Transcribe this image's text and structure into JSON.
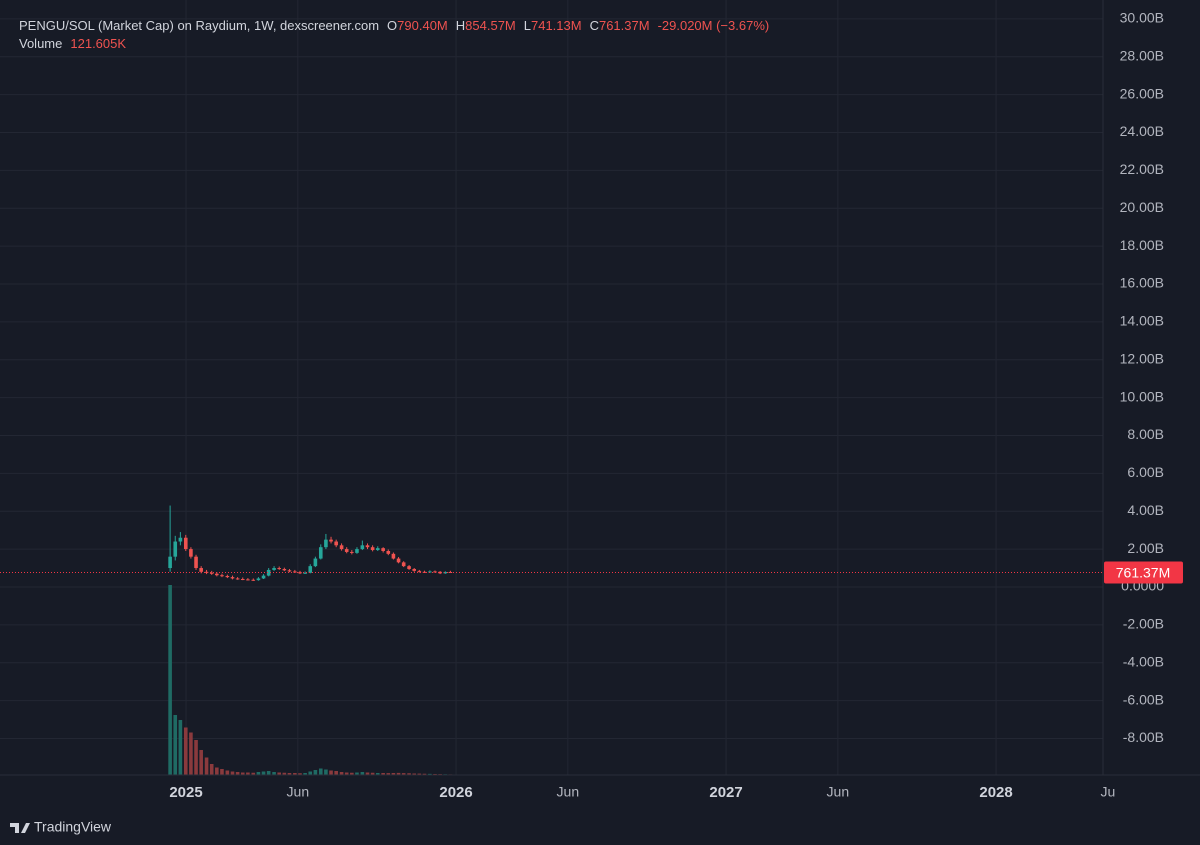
{
  "chart_data": {
    "type": "candlestick",
    "title": "PENGU/SOL (Market Cap) on Raydium, 1W, dexscreener.com",
    "ohlc_legend": [
      {
        "key": "O",
        "value": "790.40M"
      },
      {
        "key": "H",
        "value": "854.57M"
      },
      {
        "key": "L",
        "value": "741.13M"
      },
      {
        "key": "C",
        "value": "761.37M"
      }
    ],
    "change": "-29.020M (−3.67%)",
    "volume_label": "Volume",
    "volume_value": "121.605K",
    "brand": "TradingView",
    "x": [
      2024.941,
      2024.96,
      2024.979,
      2024.999,
      2025.018,
      2025.037,
      2025.056,
      2025.076,
      2025.095,
      2025.114,
      2025.133,
      2025.153,
      2025.172,
      2025.191,
      2025.21,
      2025.229,
      2025.249,
      2025.268,
      2025.287,
      2025.306,
      2025.326,
      2025.345,
      2025.364,
      2025.383,
      2025.403,
      2025.422,
      2025.441,
      2025.46,
      2025.479,
      2025.499,
      2025.518,
      2025.537,
      2025.556,
      2025.576,
      2025.595,
      2025.614,
      2025.633,
      2025.653,
      2025.672,
      2025.691,
      2025.71,
      2025.73,
      2025.749,
      2025.768,
      2025.787,
      2025.806,
      2025.826,
      2025.845,
      2025.864,
      2025.883,
      2025.903,
      2025.922,
      2025.941,
      2025.96,
      2025.979
    ],
    "open": [
      1.0,
      1.6,
      2.4,
      2.6,
      2.0,
      1.6,
      1.0,
      0.8,
      0.75,
      0.7,
      0.62,
      0.58,
      0.52,
      0.45,
      0.42,
      0.4,
      0.38,
      0.36,
      0.45,
      0.6,
      0.9,
      1.0,
      0.95,
      0.88,
      0.82,
      0.78,
      0.72,
      0.75,
      1.1,
      1.5,
      2.1,
      2.5,
      2.4,
      2.2,
      2.0,
      1.85,
      1.8,
      2.0,
      2.2,
      2.1,
      1.95,
      2.05,
      1.9,
      1.75,
      1.5,
      1.3,
      1.1,
      0.95,
      0.85,
      0.8,
      0.78,
      0.82,
      0.8,
      0.72,
      0.7904
    ],
    "high": [
      4.3,
      2.7,
      2.9,
      2.75,
      2.1,
      1.7,
      1.1,
      0.9,
      0.85,
      0.78,
      0.7,
      0.65,
      0.6,
      0.52,
      0.5,
      0.47,
      0.45,
      0.52,
      0.68,
      1.0,
      1.1,
      1.08,
      1.02,
      0.95,
      0.9,
      0.85,
      0.82,
      1.2,
      1.6,
      2.25,
      2.8,
      2.65,
      2.5,
      2.3,
      2.1,
      1.95,
      2.1,
      2.45,
      2.3,
      2.2,
      2.15,
      2.1,
      1.98,
      1.82,
      1.58,
      1.36,
      1.16,
      1.0,
      0.9,
      0.86,
      0.88,
      0.87,
      0.84,
      0.83,
      0.85457
    ],
    "low": [
      0.8,
      1.4,
      2.2,
      1.9,
      1.5,
      0.9,
      0.72,
      0.68,
      0.64,
      0.56,
      0.52,
      0.47,
      0.4,
      0.38,
      0.36,
      0.34,
      0.32,
      0.33,
      0.42,
      0.56,
      0.85,
      0.9,
      0.84,
      0.78,
      0.74,
      0.68,
      0.69,
      0.72,
      1.05,
      1.45,
      2.0,
      2.3,
      2.1,
      1.92,
      1.78,
      1.72,
      1.75,
      1.95,
      2.0,
      1.88,
      1.9,
      1.82,
      1.68,
      1.45,
      1.25,
      1.05,
      0.9,
      0.8,
      0.76,
      0.74,
      0.75,
      0.76,
      0.68,
      0.69,
      0.74113
    ],
    "close": [
      1.6,
      2.4,
      2.6,
      2.0,
      1.6,
      1.0,
      0.8,
      0.75,
      0.7,
      0.62,
      0.58,
      0.52,
      0.45,
      0.42,
      0.4,
      0.38,
      0.36,
      0.45,
      0.6,
      0.9,
      1.0,
      0.95,
      0.88,
      0.82,
      0.78,
      0.72,
      0.75,
      1.1,
      1.5,
      2.1,
      2.5,
      2.4,
      2.2,
      2.0,
      1.85,
      1.8,
      2.0,
      2.2,
      2.1,
      1.95,
      2.05,
      1.9,
      1.75,
      1.5,
      1.3,
      1.1,
      0.95,
      0.85,
      0.8,
      0.78,
      0.82,
      0.8,
      0.72,
      0.7904,
      0.76137
    ],
    "volume": [
      38000,
      12000,
      11000,
      9500,
      8500,
      7000,
      5000,
      3500,
      2200,
      1500,
      1200,
      900,
      700,
      600,
      500,
      500,
      450,
      600,
      700,
      800,
      600,
      500,
      450,
      400,
      400,
      350,
      400,
      700,
      1000,
      1300,
      1100,
      900,
      800,
      600,
      500,
      450,
      500,
      600,
      500,
      450,
      400,
      400,
      380,
      400,
      420,
      380,
      350,
      300,
      280,
      250,
      230,
      200,
      180,
      150,
      121.605
    ],
    "volume_lim": [
      0,
      40000
    ],
    "up_color": "#26a69a",
    "down_color": "#ef5350",
    "volume_up_color": "#1f6b64",
    "volume_down_color": "#8a3a3d",
    "ylim": [
      -9.93,
      30.47
    ],
    "yticks": [
      {
        "value": 30,
        "label": "30.00B"
      },
      {
        "value": 28,
        "label": "28.00B"
      },
      {
        "value": 26,
        "label": "26.00B"
      },
      {
        "value": 24,
        "label": "24.00B"
      },
      {
        "value": 22,
        "label": "22.00B"
      },
      {
        "value": 20,
        "label": "20.00B"
      },
      {
        "value": 18,
        "label": "18.00B"
      },
      {
        "value": 16,
        "label": "16.00B"
      },
      {
        "value": 14,
        "label": "14.00B"
      },
      {
        "value": 12,
        "label": "12.00B"
      },
      {
        "value": 10,
        "label": "10.00B"
      },
      {
        "value": 8,
        "label": "8.00B"
      },
      {
        "value": 6,
        "label": "6.00B"
      },
      {
        "value": 4,
        "label": "4.00B"
      },
      {
        "value": 2,
        "label": "2.00B"
      },
      {
        "value": 0,
        "label": "0.0000"
      },
      {
        "value": -2,
        "label": "-2.00B"
      },
      {
        "value": -4,
        "label": "-4.00B"
      },
      {
        "value": -6,
        "label": "-6.00B"
      },
      {
        "value": -8,
        "label": "-8.00B"
      }
    ],
    "xlim": [
      2024.348,
      2028.396
    ],
    "xticks": [
      {
        "value": 2025,
        "label": "2025"
      },
      {
        "value": 2025.414,
        "label": "Jun"
      },
      {
        "value": 2026,
        "label": "2026"
      },
      {
        "value": 2026.414,
        "label": "Jun"
      },
      {
        "value": 2027,
        "label": "2027"
      },
      {
        "value": 2027.414,
        "label": "Jun"
      },
      {
        "value": 2028,
        "label": "2028"
      },
      {
        "value": 2028.414,
        "label": "Ju"
      }
    ],
    "last_price": {
      "value": 0.76137,
      "label": "761.37M",
      "color": "#f23645"
    },
    "grid": true
  }
}
